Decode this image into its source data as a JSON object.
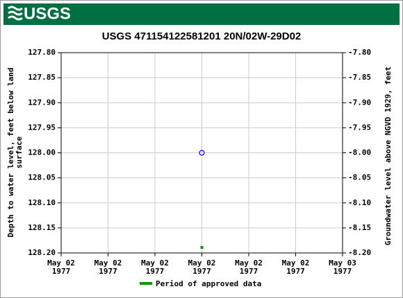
{
  "header": {
    "logo": "USGS"
  },
  "chart_data": {
    "type": "scatter",
    "title": "USGS 471154122581201 20N/02W-29D02",
    "ylabel": "Depth to water level, feet below land\nsurface",
    "y2label": "Groundwater level above NGVD 1929, feet",
    "xlim": [
      "1977-05-02T00:00",
      "1977-05-03T00:00"
    ],
    "xticks": [
      {
        "value": "1977-05-02T00:00",
        "label": "May 02\n1977"
      },
      {
        "value": "1977-05-02T04:00",
        "label": "May 02\n1977"
      },
      {
        "value": "1977-05-02T08:00",
        "label": "May 02\n1977"
      },
      {
        "value": "1977-05-02T12:00",
        "label": "May 02\n1977"
      },
      {
        "value": "1977-05-02T16:00",
        "label": "May 02\n1977"
      },
      {
        "value": "1977-05-02T20:00",
        "label": "May 02\n1977"
      },
      {
        "value": "1977-05-03T00:00",
        "label": "May 03\n1977"
      }
    ],
    "ylim": [
      127.8,
      128.2
    ],
    "y_inverted": true,
    "yticks": [
      {
        "value": 127.8,
        "label": "127.80"
      },
      {
        "value": 127.85,
        "label": "127.85"
      },
      {
        "value": 127.9,
        "label": "127.90"
      },
      {
        "value": 127.95,
        "label": "127.95"
      },
      {
        "value": 128.0,
        "label": "128.00"
      },
      {
        "value": 128.05,
        "label": "128.05"
      },
      {
        "value": 128.1,
        "label": "128.10"
      },
      {
        "value": 128.15,
        "label": "128.15"
      },
      {
        "value": 128.2,
        "label": "128.20"
      }
    ],
    "y2lim": [
      -8.2,
      -7.8
    ],
    "y2ticks": [
      {
        "value": -7.8,
        "label": "-7.80"
      },
      {
        "value": -7.85,
        "label": "-7.85"
      },
      {
        "value": -7.9,
        "label": "-7.90"
      },
      {
        "value": -7.95,
        "label": "-7.95"
      },
      {
        "value": -8.0,
        "label": "-8.00"
      },
      {
        "value": -8.05,
        "label": "-8.05"
      },
      {
        "value": -8.1,
        "label": "-8.10"
      },
      {
        "value": -8.15,
        "label": "-8.15"
      },
      {
        "value": -8.2,
        "label": "-8.20"
      }
    ],
    "grid": true,
    "points": {
      "x": [
        "1977-05-02T12:00"
      ],
      "values": [
        128.0
      ],
      "color": "#0000ff"
    },
    "approved": {
      "name": "Period of approved data",
      "color": "#009900",
      "x": [
        "1977-05-02T12:00"
      ]
    }
  }
}
